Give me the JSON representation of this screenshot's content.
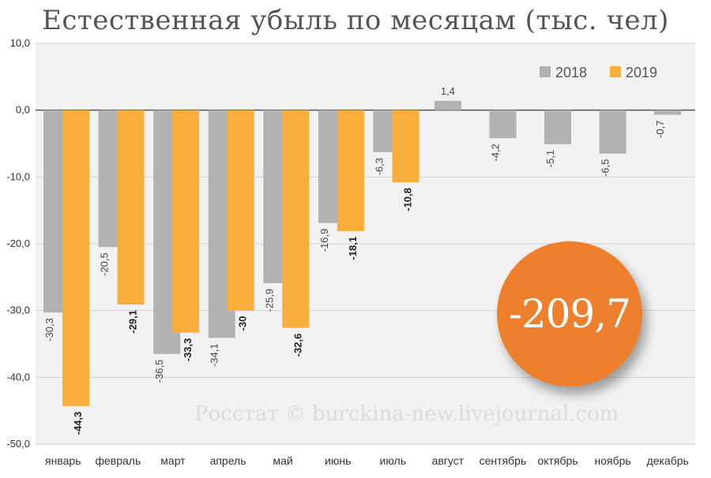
{
  "chart_data": {
    "type": "bar",
    "title": "Естественная убыль по месяцам (тыс. чел)",
    "categories": [
      "январь",
      "февраль",
      "март",
      "апрель",
      "май",
      "июнь",
      "июль",
      "август",
      "сентябрь",
      "октябрь",
      "ноябрь",
      "декабрь"
    ],
    "series": [
      {
        "name": "2018",
        "color": "#b2b2b2",
        "values": [
          -30.3,
          -20.5,
          -36.5,
          -34.1,
          -25.9,
          -16.9,
          -6.3,
          1.4,
          -4.2,
          -5.1,
          -6.5,
          -0.7
        ],
        "labels": [
          "-30,3",
          "-20,5",
          "-36,5",
          "-34,1",
          "-25,9",
          "-16,9",
          "-6,3",
          "1,4",
          "-4,2",
          "-5,1",
          "-6,5",
          "-0,7"
        ]
      },
      {
        "name": "2019",
        "color": "#f9ad3b",
        "values": [
          -44.3,
          -29.1,
          -33.3,
          -30,
          -32.6,
          -18.1,
          -10.8,
          null,
          null,
          null,
          null,
          null
        ],
        "labels": [
          "-44,3",
          "-29,1",
          "-33,3",
          "-30",
          "-32,6",
          "-18,1",
          "-10,8",
          null,
          null,
          null,
          null,
          null
        ]
      }
    ],
    "ylim": [
      -50,
      10
    ],
    "yticks": [
      10,
      0,
      -10,
      -20,
      -30,
      -40,
      -50
    ],
    "ytick_labels": [
      "10,0",
      "0,0",
      "-10,0",
      "-20,0",
      "-30,0",
      "-40,0",
      "-50,0"
    ],
    "grid": "horizontal",
    "legend_position": "top-right",
    "annotation_total": "-209,7",
    "watermark": "Росстат © burckina-new.livejournal.com"
  }
}
